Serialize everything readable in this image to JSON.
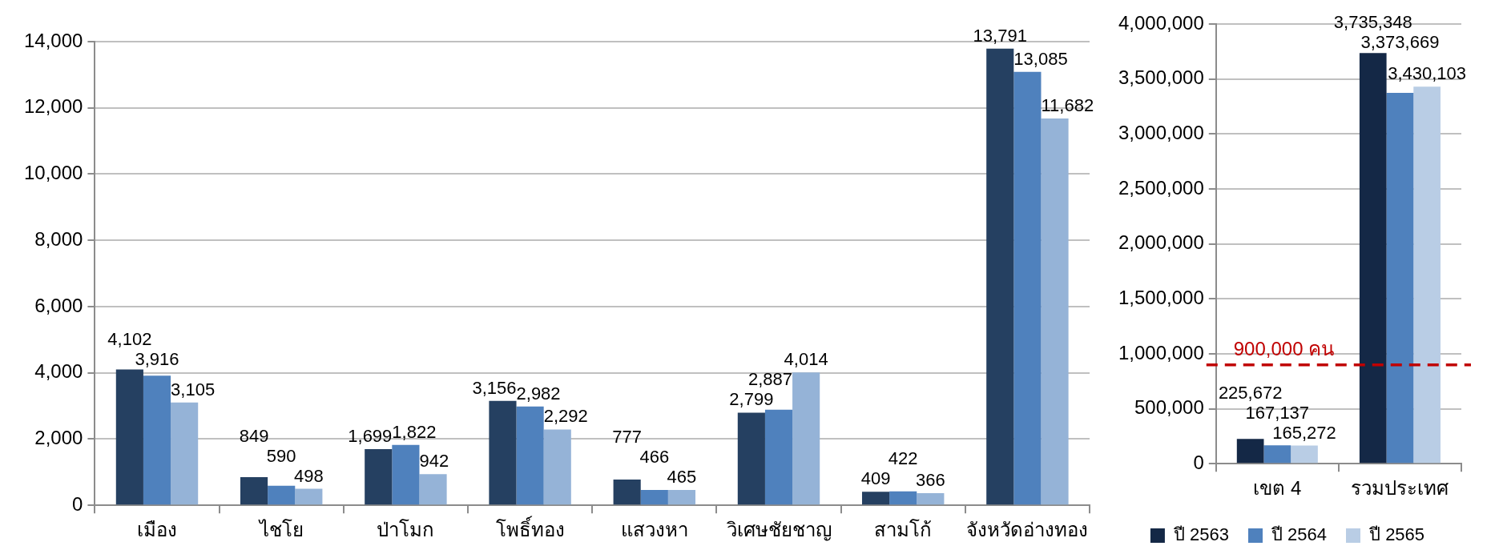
{
  "chart_data": [
    {
      "type": "bar",
      "categories": [
        "เมือง",
        "ไชโย",
        "ป่าโมก",
        "โพธิ์ทอง",
        "แสวงหา",
        "วิเศษชัยชาญ",
        "สามโก้",
        "จังหวัดอ่างทอง"
      ],
      "series": [
        {
          "color": "#254061",
          "values": [
            4102,
            849,
            1699,
            3156,
            777,
            2799,
            409,
            13791
          ],
          "value_labels": [
            "4,102",
            "849",
            "1,699",
            "3,156",
            "777",
            "2,799",
            "409",
            "13,791"
          ]
        },
        {
          "color": "#4f81bd",
          "values": [
            3916,
            590,
            1822,
            2982,
            466,
            2887,
            422,
            13085
          ],
          "value_labels": [
            "3,916",
            "590",
            "1,822",
            "2,982",
            "466",
            "2,887",
            "422",
            "13,085"
          ]
        },
        {
          "color": "#95b3d7",
          "values": [
            3105,
            498,
            942,
            2292,
            465,
            4014,
            366,
            11682
          ],
          "value_labels": [
            "3,105",
            "498",
            "942",
            "2,292",
            "465",
            "4,014",
            "366",
            "11,682"
          ]
        }
      ],
      "ylim": [
        0,
        14000
      ],
      "yticks": [
        0,
        {
          "value": 2000,
          "label": "2,000"
        },
        {
          "value": 4000,
          "label": "4,000"
        },
        {
          "value": 6000,
          "label": "6,000"
        },
        {
          "value": 8000,
          "label": "8,000"
        },
        {
          "value": 10000,
          "label": "10,000"
        },
        {
          "value": 12000,
          "label": "12,000"
        },
        {
          "value": 14000,
          "label": "14,000"
        }
      ],
      "grid": "y",
      "legend": false
    },
    {
      "type": "bar",
      "categories": [
        "เขต 4",
        "รวมประเทศ"
      ],
      "series": [
        {
          "name": "ปี 2563",
          "color": "#142846",
          "values": [
            225672,
            3735348
          ],
          "value_labels": [
            "225,672",
            "3,735,348"
          ]
        },
        {
          "name": "ปี 2564",
          "color": "#4f81bd",
          "values": [
            167137,
            3373669
          ],
          "value_labels": [
            "167,137",
            "3,373,669"
          ]
        },
        {
          "name": "ปี 2565",
          "color": "#b9cde5",
          "values": [
            165272,
            3430103
          ],
          "value_labels": [
            "165,272",
            "3,430,103"
          ]
        }
      ],
      "ylim": [
        0,
        4000000
      ],
      "yticks": [
        0,
        {
          "value": 500000,
          "label": "500,000"
        },
        {
          "value": 1000000,
          "label": "1,000,000"
        },
        {
          "value": 1500000,
          "label": "1,500,000"
        },
        {
          "value": 2000000,
          "label": "2,000,000"
        },
        {
          "value": 2500000,
          "label": "2,500,000"
        },
        {
          "value": 3000000,
          "label": "3,000,000"
        },
        {
          "value": 3500000,
          "label": "3,500,000"
        },
        {
          "value": 4000000,
          "label": "4,000,000"
        }
      ],
      "grid": "y",
      "legend": "bottom",
      "ref_lines": [
        {
          "axis": "y",
          "value": 900000,
          "label": "900,000 คน",
          "color": "#c00000",
          "line_style": "dashed"
        }
      ]
    }
  ]
}
